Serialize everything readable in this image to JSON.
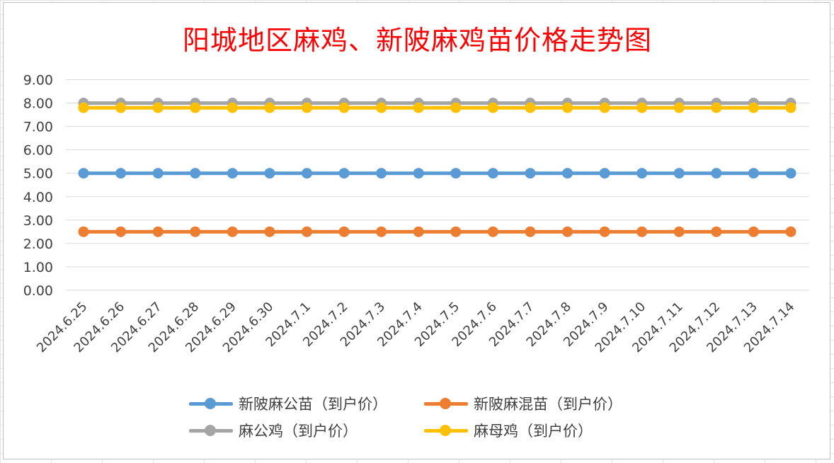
{
  "chart_data": {
    "type": "line",
    "title": "阳城地区麻鸡、新陂麻鸡苗价格走势图",
    "x": [
      "2024.6.25",
      "2024.6.26",
      "2024.6.27",
      "2024.6.28",
      "2024.6.29",
      "2024.6.30",
      "2024.7.1",
      "2024.7.2",
      "2024.7.3",
      "2024.7.4",
      "2024.7.5",
      "2024.7.6",
      "2024.7.7",
      "2024.7.8",
      "2024.7.9",
      "2024.7.10",
      "2024.7.11",
      "2024.7.12",
      "2024.7.13",
      "2024.7.14"
    ],
    "series": [
      {
        "name": "新陂麻公苗（到户价）",
        "color": "#5b9bd5",
        "values": [
          5,
          5,
          5,
          5,
          5,
          5,
          5,
          5,
          5,
          5,
          5,
          5,
          5,
          5,
          5,
          5,
          5,
          5,
          5,
          5
        ]
      },
      {
        "name": "新陂麻混苗（到户价）",
        "color": "#ed7d31",
        "values": [
          2.5,
          2.5,
          2.5,
          2.5,
          2.5,
          2.5,
          2.5,
          2.5,
          2.5,
          2.5,
          2.5,
          2.5,
          2.5,
          2.5,
          2.5,
          2.5,
          2.5,
          2.5,
          2.5,
          2.5
        ]
      },
      {
        "name": "麻公鸡（到户价）",
        "color": "#a5a5a5",
        "values": [
          8,
          8,
          8,
          8,
          8,
          8,
          8,
          8,
          8,
          8,
          8,
          8,
          8,
          8,
          8,
          8,
          8,
          8,
          8,
          8
        ]
      },
      {
        "name": "麻母鸡（到户价）",
        "color": "#ffc000",
        "values": [
          7.8,
          7.8,
          7.8,
          7.8,
          7.8,
          7.8,
          7.8,
          7.8,
          7.8,
          7.8,
          7.8,
          7.8,
          7.8,
          7.8,
          7.8,
          7.8,
          7.8,
          7.8,
          7.8,
          7.8
        ]
      }
    ],
    "yticks": [
      "0.00",
      "1.00",
      "2.00",
      "3.00",
      "4.00",
      "5.00",
      "6.00",
      "7.00",
      "8.00",
      "9.00"
    ],
    "ylim": [
      0,
      9
    ],
    "grid": true,
    "legend_position": "bottom"
  }
}
